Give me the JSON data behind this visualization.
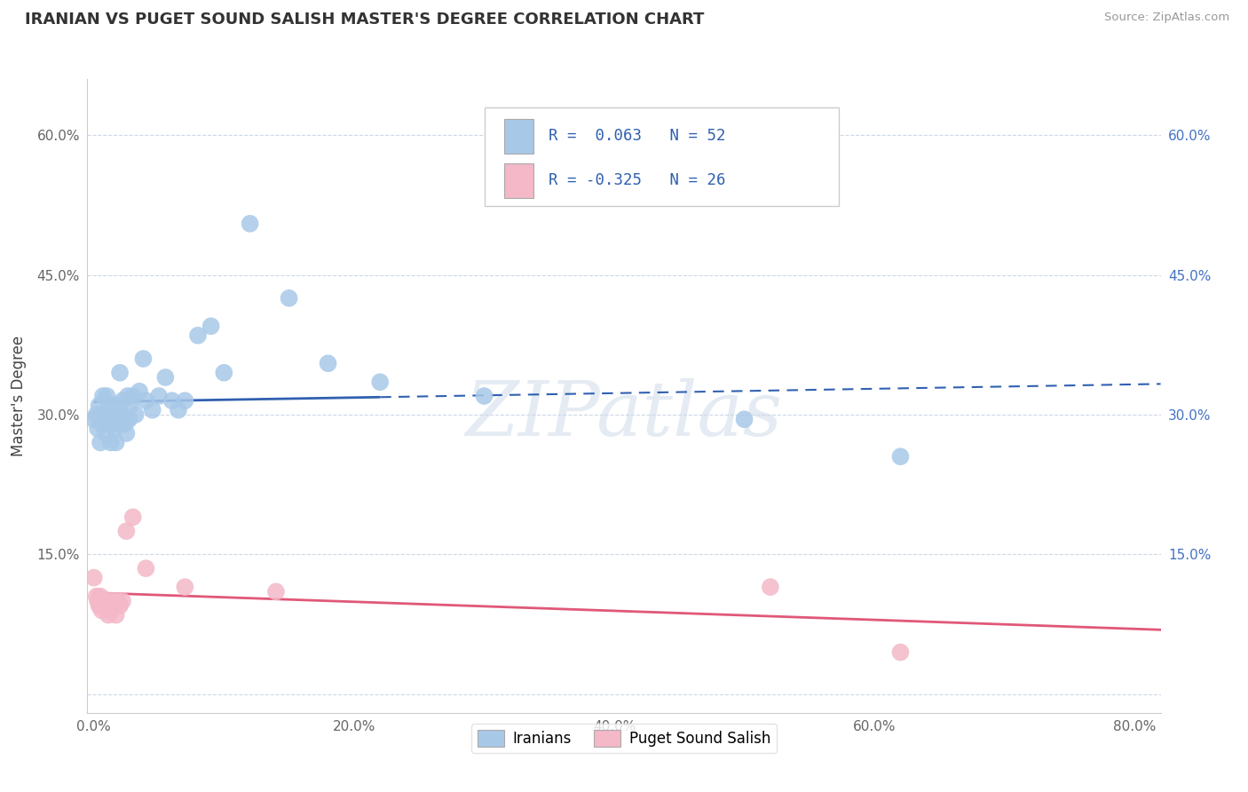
{
  "title": "IRANIAN VS PUGET SOUND SALISH MASTER'S DEGREE CORRELATION CHART",
  "source_text": "Source: ZipAtlas.com",
  "ylabel": "Master's Degree",
  "xlim": [
    -0.005,
    0.82
  ],
  "ylim": [
    -0.02,
    0.66
  ],
  "xtick_positions": [
    0.0,
    0.2,
    0.4,
    0.6,
    0.8
  ],
  "xtick_labels": [
    "0.0%",
    "20.0%",
    "40.0%",
    "60.0%",
    "80.0%"
  ],
  "ytick_positions": [
    0.0,
    0.15,
    0.3,
    0.45,
    0.6
  ],
  "ytick_labels_left": [
    "",
    "15.0%",
    "30.0%",
    "45.0%",
    "60.0%"
  ],
  "ytick_labels_right": [
    "",
    "15.0%",
    "30.0%",
    "45.0%",
    "60.0%"
  ],
  "legend_r1": "R =  0.063",
  "legend_n1": "N = 52",
  "legend_r2": "R = -0.325",
  "legend_n2": "N = 26",
  "blue_scatter_color": "#a8c8e8",
  "pink_scatter_color": "#f4b8c8",
  "blue_line_color": "#3060b0",
  "pink_line_color": "#e05878",
  "watermark": "ZIPatlas",
  "iranians_x": [
    0.0,
    0.002,
    0.003,
    0.004,
    0.005,
    0.006,
    0.007,
    0.008,
    0.009,
    0.01,
    0.01,
    0.011,
    0.012,
    0.012,
    0.013,
    0.014,
    0.015,
    0.015,
    0.016,
    0.017,
    0.018,
    0.019,
    0.02,
    0.021,
    0.022,
    0.023,
    0.024,
    0.025,
    0.026,
    0.027,
    0.028,
    0.03,
    0.032,
    0.035,
    0.038,
    0.04,
    0.045,
    0.05,
    0.055,
    0.06,
    0.065,
    0.07,
    0.08,
    0.09,
    0.1,
    0.12,
    0.15,
    0.18,
    0.22,
    0.3,
    0.5,
    0.62
  ],
  "iranians_y": [
    0.295,
    0.3,
    0.285,
    0.31,
    0.27,
    0.29,
    0.32,
    0.3,
    0.28,
    0.3,
    0.32,
    0.295,
    0.29,
    0.31,
    0.27,
    0.3,
    0.29,
    0.31,
    0.285,
    0.27,
    0.31,
    0.3,
    0.345,
    0.3,
    0.315,
    0.295,
    0.29,
    0.28,
    0.32,
    0.295,
    0.31,
    0.32,
    0.3,
    0.325,
    0.36,
    0.315,
    0.305,
    0.32,
    0.34,
    0.315,
    0.305,
    0.315,
    0.385,
    0.395,
    0.345,
    0.505,
    0.425,
    0.355,
    0.335,
    0.32,
    0.295,
    0.255
  ],
  "puget_x": [
    0.0,
    0.002,
    0.003,
    0.004,
    0.005,
    0.006,
    0.007,
    0.008,
    0.009,
    0.01,
    0.011,
    0.012,
    0.013,
    0.015,
    0.016,
    0.017,
    0.018,
    0.02,
    0.022,
    0.025,
    0.03,
    0.04,
    0.07,
    0.14,
    0.52,
    0.62
  ],
  "puget_y": [
    0.125,
    0.105,
    0.1,
    0.095,
    0.105,
    0.09,
    0.1,
    0.1,
    0.095,
    0.1,
    0.085,
    0.1,
    0.09,
    0.1,
    0.095,
    0.085,
    0.1,
    0.095,
    0.1,
    0.175,
    0.19,
    0.135,
    0.115,
    0.11,
    0.115,
    0.045
  ],
  "blue_line_solid_end": 0.22,
  "blue_line_end": 0.82,
  "pink_line_end": 0.82
}
